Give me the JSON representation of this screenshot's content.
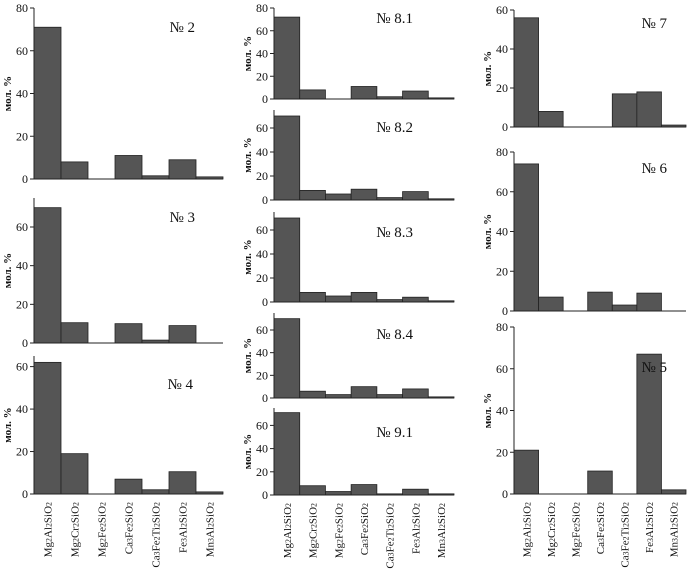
{
  "chart_data": [
    {
      "type": "bar",
      "title": "№ 2",
      "ylabel": "мол. %",
      "ylim": [
        0,
        80
      ],
      "yticks": [
        0,
        20,
        40,
        60,
        80
      ],
      "categories": [
        "Mg2Al2SiO2",
        "Mg2Cr2SiO2",
        "Mg2Fe2SiO2",
        "Ca3Fe2SiO2",
        "Ca3Fe2Ti2SiO2",
        "Fe3Al2SiO2",
        "Mn3Al2SiO2"
      ],
      "values": [
        71,
        8,
        0,
        11,
        1.5,
        9,
        1
      ]
    },
    {
      "type": "bar",
      "title": "№ 3",
      "ylabel": "мол. %",
      "ylim": [
        0,
        75
      ],
      "yticks": [
        0,
        20,
        40,
        60
      ],
      "categories": [
        "Mg2Al2SiO2",
        "Mg2Cr2SiO2",
        "Mg2Fe2SiO2",
        "Ca3Fe2SiO2",
        "Ca3Fe2Ti2SiO2",
        "Fe3Al2SiO2",
        "Mn3Al2SiO2"
      ],
      "values": [
        70,
        10.5,
        0,
        10,
        1.5,
        9,
        0
      ]
    },
    {
      "type": "bar",
      "title": "№ 4",
      "ylabel": "мол. %",
      "ylim": [
        0,
        65
      ],
      "yticks": [
        0,
        20,
        40,
        60
      ],
      "categories": [
        "Mg2Al2SiO2",
        "Mg2Cr2SiO2",
        "Mg2Fe2SiO2",
        "Ca3Fe2SiO2",
        "Ca3Fe2Ti2SiO2",
        "Fe3Al2SiO2",
        "Mn3Al2SiO2"
      ],
      "values": [
        62,
        19,
        0,
        7,
        2,
        10.5,
        1
      ]
    },
    {
      "type": "bar",
      "title": "№ 8.1",
      "ylabel": "мол. %",
      "ylim": [
        0,
        80
      ],
      "yticks": [
        0,
        20,
        40,
        60,
        80
      ],
      "categories": [
        "Mg2Al2SiO2",
        "Mg2Cr2SiO2",
        "Mg2Fe2SiO2",
        "Ca3Fe2SiO2",
        "Ca3Fe2Ti2SiO2",
        "Fe3Al2SiO2",
        "Mn3Al2SiO2"
      ],
      "values": [
        72,
        8,
        0,
        11,
        2,
        7,
        1
      ]
    },
    {
      "type": "bar",
      "title": "№ 8.2",
      "ylabel": "мол. %",
      "ylim": [
        0,
        75
      ],
      "yticks": [
        0,
        20,
        40,
        60
      ],
      "categories": [
        "Mg2Al2SiO2",
        "Mg2Cr2SiO2",
        "Mg2Fe2SiO2",
        "Ca3Fe2SiO2",
        "Ca3Fe2Ti2SiO2",
        "Fe3Al2SiO2",
        "Mn3Al2SiO2"
      ],
      "values": [
        70,
        8,
        5,
        9,
        2,
        7,
        1
      ]
    },
    {
      "type": "bar",
      "title": "№ 8.3",
      "ylabel": "мол. %",
      "ylim": [
        0,
        75
      ],
      "yticks": [
        0,
        20,
        40,
        60
      ],
      "categories": [
        "Mg2Al2SiO2",
        "Mg2Cr2SiO2",
        "Mg2Fe2SiO2",
        "Ca3Fe2SiO2",
        "Ca3Fe2Ti2SiO2",
        "Fe3Al2SiO2",
        "Mn3Al2SiO2"
      ],
      "values": [
        70,
        8,
        5,
        8,
        2,
        4,
        1
      ]
    },
    {
      "type": "bar",
      "title": "№ 8.4",
      "ylabel": "мол. %",
      "ylim": [
        0,
        75
      ],
      "yticks": [
        0,
        20,
        40,
        60
      ],
      "categories": [
        "Mg2Al2SiO2",
        "Mg2Cr2SiO2",
        "Mg2Fe2SiO2",
        "Ca3Fe2SiO2",
        "Ca3Fe2Ti2SiO2",
        "Fe3Al2SiO2",
        "Mn3Al2SiO2"
      ],
      "values": [
        70,
        6,
        3,
        10,
        3,
        8,
        1
      ]
    },
    {
      "type": "bar",
      "title": "№ 9.1",
      "ylabel": "мол. %",
      "ylim": [
        0,
        75
      ],
      "yticks": [
        0,
        20,
        40,
        60
      ],
      "categories": [
        "Mg2Al2SiO2",
        "Mg2Cr2SiO2",
        "Mg2Fe2SiO2",
        "Ca3Fe2SiO2",
        "Ca3Fe2Ti2SiO2",
        "Fe3Al2SiO2",
        "Mn3Al2SiO2"
      ],
      "values": [
        71,
        8,
        3,
        9,
        1,
        5,
        1
      ]
    },
    {
      "type": "bar",
      "title": "№ 7",
      "ylabel": "мол. %",
      "ylim": [
        0,
        60
      ],
      "yticks": [
        0,
        20,
        40,
        60
      ],
      "categories": [
        "Mg2Al2SiO2",
        "Mg2Cr2SiO2",
        "Mg2Fe2SiO2",
        "Ca3Fe2SiO2",
        "Ca3Fe2Ti2SiO2",
        "Fe3Al2SiO2",
        "Mn3Al2SiO2"
      ],
      "values": [
        56,
        8,
        0,
        0,
        17,
        18,
        1
      ]
    },
    {
      "type": "bar",
      "title": "№ 6",
      "ylabel": "мол. %",
      "ylim": [
        0,
        80
      ],
      "yticks": [
        0,
        20,
        40,
        60,
        80
      ],
      "categories": [
        "Mg2Al2SiO2",
        "Mg2Cr2SiO2",
        "Mg2Fe2SiO2",
        "Ca3Fe2SiO2",
        "Ca3Fe2Ti2SiO2",
        "Fe3Al2SiO2",
        "Mn3Al2SiO2"
      ],
      "values": [
        74,
        7,
        0,
        9.5,
        3,
        9,
        0
      ]
    },
    {
      "type": "bar",
      "title": "№ 5",
      "ylabel": "мол. %",
      "ylim": [
        0,
        80
      ],
      "yticks": [
        0,
        20,
        40,
        60,
        80
      ],
      "categories": [
        "Mg2Al2SiO2",
        "Mg2Cr2SiO2",
        "Mg2Fe2SiO2",
        "Ca3Fe2SiO2",
        "Ca3Fe2Ti2SiO2",
        "Fe3Al2SiO2",
        "Mn3Al2SiO2"
      ],
      "values": [
        21,
        0,
        0,
        11,
        0,
        67,
        2
      ]
    }
  ],
  "colors": {
    "bar": "#555555",
    "axis": "#222222"
  }
}
